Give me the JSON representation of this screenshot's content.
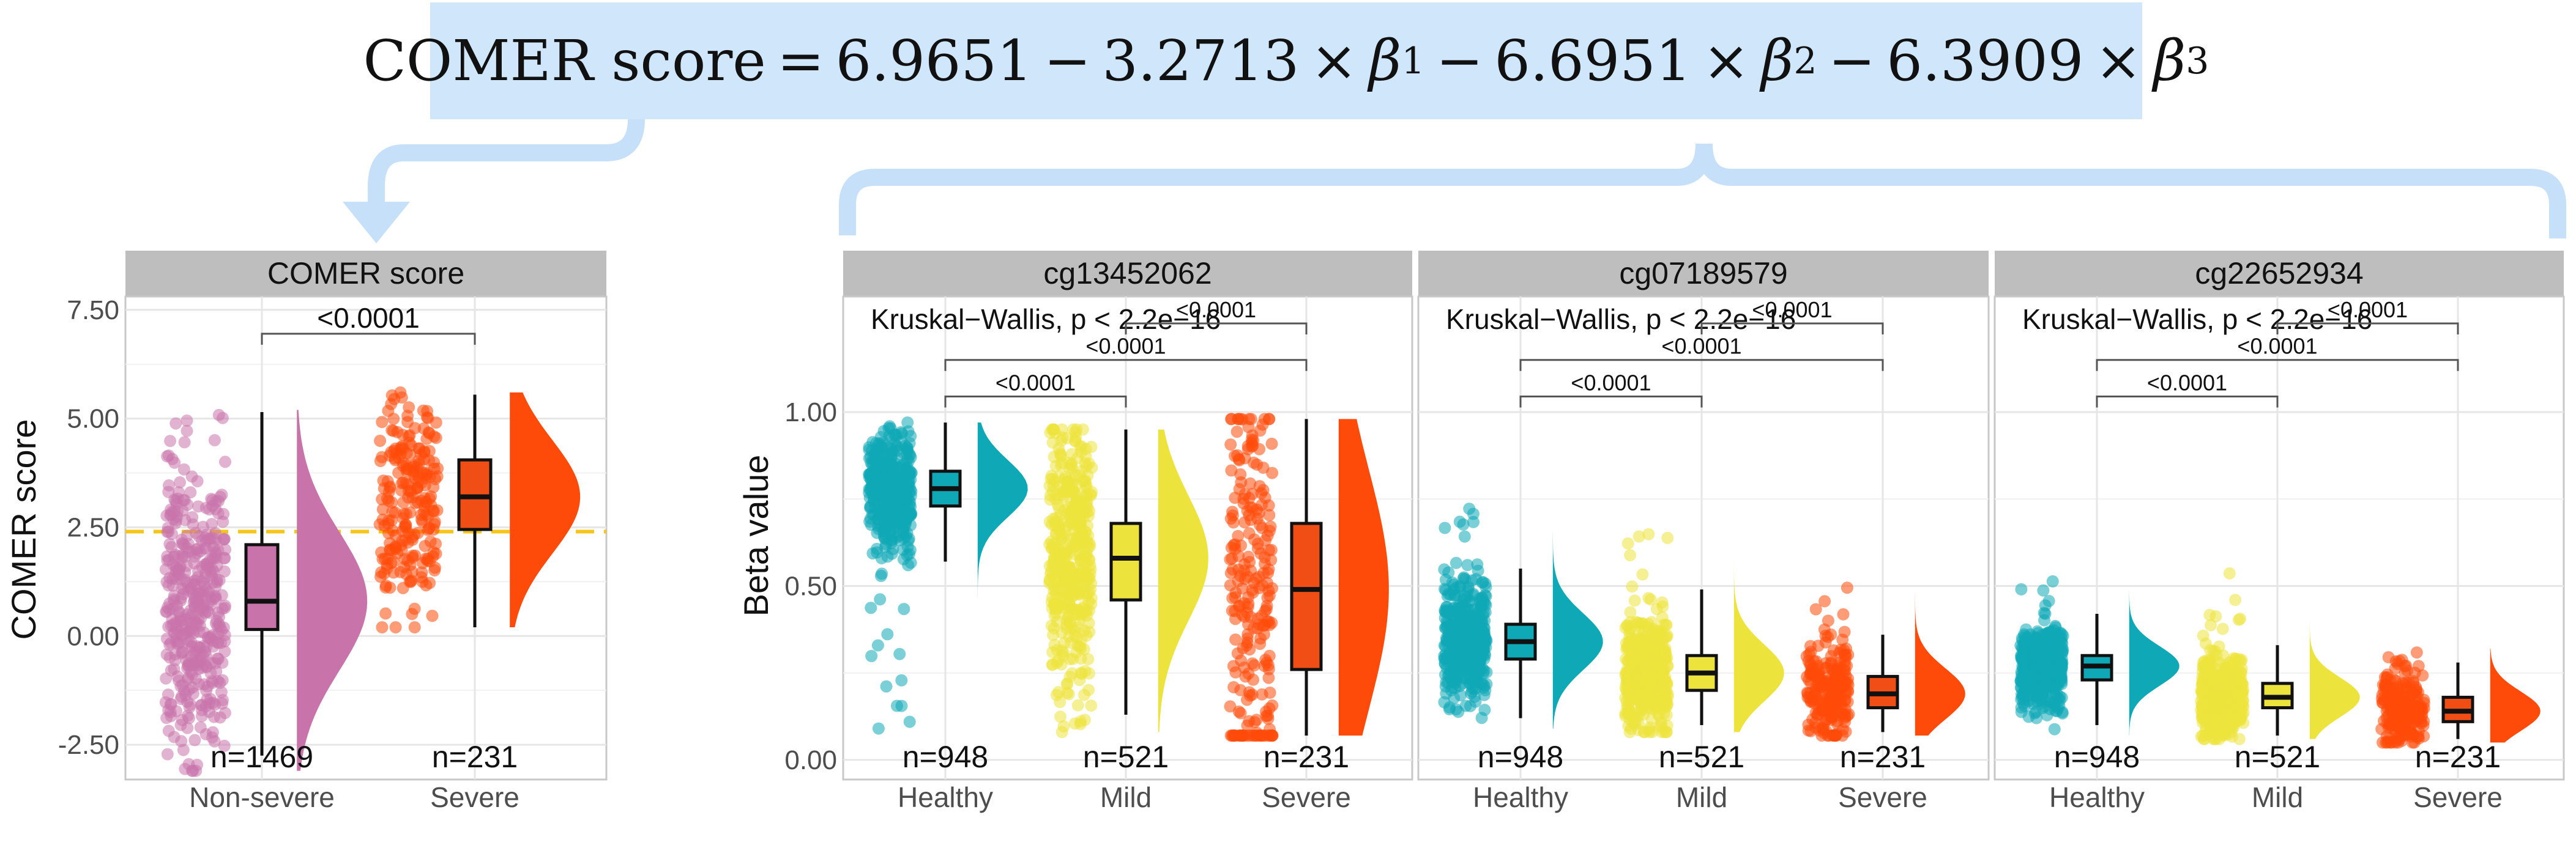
{
  "formula": {
    "lhs": "COMER score",
    "c0": "6.9651",
    "t1": "3.2713",
    "t2": "6.6951",
    "t3": "6.3909",
    "var": "β",
    "s1": "1",
    "s2": "2",
    "s3": "3"
  },
  "colors": {
    "arrow": "#c5e0f8",
    "strip": "#bebebe",
    "non_severe": "#c874ab",
    "healthy": "#0fa8b6",
    "mild": "#ede33d",
    "severe": "#ff4b0a",
    "severe_box": "#f04e14",
    "threshold": "#f5c518"
  },
  "chart_data": [
    {
      "type": "raincloud",
      "panel": "COMER score",
      "ylabel": "COMER score",
      "ylim": [
        -3.3,
        8.2
      ],
      "yticks": [
        "7.50",
        "5.00",
        "2.50",
        "0.00",
        "-2.50"
      ],
      "ytick_values": [
        7.5,
        5.0,
        2.5,
        0.0,
        -2.5
      ],
      "categories": [
        "Non-severe",
        "Severe"
      ],
      "counts": [
        "n=1469",
        "n=231"
      ],
      "color_keys": [
        "non_severe",
        "severe"
      ],
      "threshold": 2.4,
      "box": [
        {
          "whisker_low": -2.75,
          "q1": 0.15,
          "median": 0.8,
          "q3": 2.1,
          "whisker_high": 5.15
        },
        {
          "whisker_low": 0.2,
          "q1": 2.45,
          "median": 3.2,
          "q3": 4.05,
          "whisker_high": 5.55
        }
      ],
      "points_range": [
        [
          -3.1,
          5.2
        ],
        [
          0.2,
          5.6
        ]
      ],
      "comparisons": [
        {
          "from": 0,
          "to": 1,
          "label": "<0.0001",
          "y": 6.95
        }
      ]
    },
    {
      "type": "raincloud",
      "panel": "cg13452062",
      "ylabel": "Beta value",
      "ylim": [
        -0.03,
        1.32
      ],
      "yticks": [
        "1.00",
        "0.50",
        "0.00"
      ],
      "ytick_values": [
        1.0,
        0.5,
        0.0
      ],
      "categories": [
        "Healthy",
        "Mild",
        "Severe"
      ],
      "counts": [
        "n=948",
        "n=521",
        "n=231"
      ],
      "color_keys": [
        "healthy",
        "mild",
        "severe"
      ],
      "test": "Kruskal−Wallis, p < 2.2e−16",
      "box": [
        {
          "whisker_low": 0.57,
          "q1": 0.73,
          "median": 0.78,
          "q3": 0.83,
          "whisker_high": 0.97
        },
        {
          "whisker_low": 0.13,
          "q1": 0.46,
          "median": 0.58,
          "q3": 0.68,
          "whisker_high": 0.95
        },
        {
          "whisker_low": 0.07,
          "q1": 0.26,
          "median": 0.49,
          "q3": 0.68,
          "whisker_high": 0.98
        }
      ],
      "points_range": [
        [
          0.07,
          0.97
        ],
        [
          0.08,
          0.95
        ],
        [
          0.07,
          0.98
        ]
      ],
      "comparisons": [
        {
          "from": 0,
          "to": 1,
          "label": "<0.0001",
          "y": 1.045
        },
        {
          "from": 0,
          "to": 2,
          "label": "<0.0001",
          "y": 1.15
        },
        {
          "from": 1,
          "to": 2,
          "label": "<0.0001",
          "y": 1.255
        }
      ]
    },
    {
      "type": "raincloud",
      "panel": "cg07189579",
      "ylabel": "",
      "ylim": [
        -0.03,
        1.32
      ],
      "categories": [
        "Healthy",
        "Mild",
        "Severe"
      ],
      "counts": [
        "n=948",
        "n=521",
        "n=231"
      ],
      "color_keys": [
        "healthy",
        "mild",
        "severe"
      ],
      "test": "Kruskal−Wallis, p < 2.2e−16",
      "box": [
        {
          "whisker_low": 0.12,
          "q1": 0.29,
          "median": 0.34,
          "q3": 0.39,
          "whisker_high": 0.55
        },
        {
          "whisker_low": 0.1,
          "q1": 0.2,
          "median": 0.25,
          "q3": 0.3,
          "whisker_high": 0.49
        },
        {
          "whisker_low": 0.08,
          "q1": 0.15,
          "median": 0.19,
          "q3": 0.24,
          "whisker_high": 0.36
        }
      ],
      "points_range": [
        [
          0.09,
          0.76
        ],
        [
          0.08,
          0.68
        ],
        [
          0.07,
          0.5
        ]
      ],
      "comparisons": [
        {
          "from": 0,
          "to": 1,
          "label": "<0.0001",
          "y": 1.045
        },
        {
          "from": 0,
          "to": 2,
          "label": "<0.0001",
          "y": 1.15
        },
        {
          "from": 1,
          "to": 2,
          "label": "<0.0001",
          "y": 1.255
        }
      ]
    },
    {
      "type": "raincloud",
      "panel": "cg22652934",
      "ylabel": "",
      "ylim": [
        -0.03,
        1.32
      ],
      "categories": [
        "Healthy",
        "Mild",
        "Severe"
      ],
      "counts": [
        "n=948",
        "n=521",
        "n=231"
      ],
      "color_keys": [
        "healthy",
        "mild",
        "severe"
      ],
      "test": "Kruskal−Wallis, p < 2.2e−16",
      "box": [
        {
          "whisker_low": 0.1,
          "q1": 0.23,
          "median": 0.27,
          "q3": 0.3,
          "whisker_high": 0.42
        },
        {
          "whisker_low": 0.07,
          "q1": 0.15,
          "median": 0.18,
          "q3": 0.22,
          "whisker_high": 0.33
        },
        {
          "whisker_low": 0.06,
          "q1": 0.11,
          "median": 0.14,
          "q3": 0.18,
          "whisker_high": 0.28
        }
      ],
      "points_range": [
        [
          0.07,
          0.52
        ],
        [
          0.06,
          0.55
        ],
        [
          0.05,
          0.32
        ]
      ],
      "comparisons": [
        {
          "from": 0,
          "to": 1,
          "label": "<0.0001",
          "y": 1.045
        },
        {
          "from": 0,
          "to": 2,
          "label": "<0.0001",
          "y": 1.15
        },
        {
          "from": 1,
          "to": 2,
          "label": "<0.0001",
          "y": 1.255
        }
      ]
    }
  ]
}
